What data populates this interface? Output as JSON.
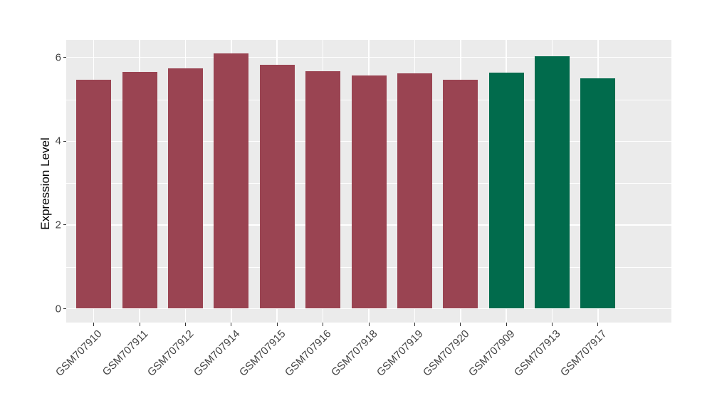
{
  "chart_data": {
    "type": "bar",
    "title": "",
    "xlabel": "",
    "ylabel": "Expression Level",
    "categories": [
      "GSM707910",
      "GSM707911",
      "GSM707912",
      "GSM707914",
      "GSM707915",
      "GSM707916",
      "GSM707918",
      "GSM707919",
      "GSM707920",
      "GSM707909",
      "GSM707913",
      "GSM707917"
    ],
    "values": [
      5.47,
      5.65,
      5.74,
      6.1,
      5.83,
      5.67,
      5.57,
      5.62,
      5.47,
      5.64,
      6.03,
      5.51
    ],
    "group_of_bar": [
      "A",
      "A",
      "A",
      "A",
      "A",
      "A",
      "A",
      "A",
      "A",
      "B",
      "B",
      "B"
    ],
    "group_colors": {
      "A": "#9A4452",
      "B": "#016B4C"
    },
    "y_tick_labels": [
      "0",
      "2",
      "4",
      "6"
    ],
    "y_tick_values": [
      0,
      2,
      4,
      6
    ],
    "y_minor_values": [
      1,
      3,
      5
    ],
    "ylim": [
      -0.31,
      6.43
    ],
    "x_tick_rotation_deg": 45,
    "legend_position": "none",
    "grid": "horizontal major+minor, vertical major at category centers",
    "style": {
      "figure_background": "#FFFFFF",
      "panel_background": "#EBEBEB",
      "grid_color": "#FFFFFF",
      "axis_text_color": "#424242",
      "axis_title_color": "#000000",
      "tick_mark_color": "#333333"
    }
  }
}
